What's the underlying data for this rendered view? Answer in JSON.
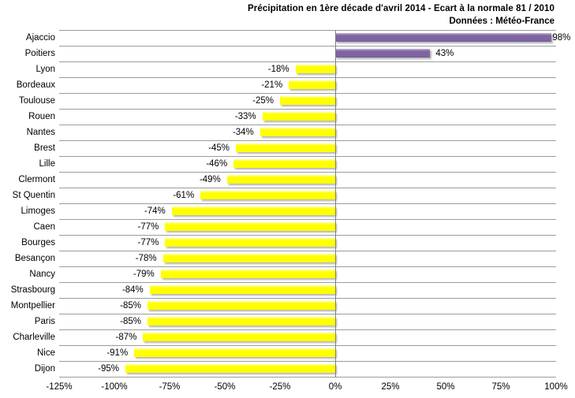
{
  "title": "Précipitation en 1ère décade  d'avril 2014 - Ecart à la normale 81 / 2010",
  "subtitle": "Données : Météo-France",
  "chart_data": {
    "type": "bar",
    "orientation": "horizontal",
    "title": "Précipitation en 1ère décade  d'avril 2014 - Ecart à la normale 81 / 2010",
    "subtitle": "Données : Météo-France",
    "categories": [
      "Ajaccio",
      "Poitiers",
      "Lyon",
      "Bordeaux",
      "Toulouse",
      "Rouen",
      "Nantes",
      "Brest",
      "Lille",
      "Clermont",
      "St Quentin",
      "Limoges",
      "Caen",
      "Bourges",
      "Besançon",
      "Nancy",
      "Strasbourg",
      "Montpellier",
      "Paris",
      "Charleville",
      "Nice",
      "Dijon"
    ],
    "values": [
      98,
      43,
      -18,
      -21,
      -25,
      -33,
      -34,
      -45,
      -46,
      -49,
      -61,
      -74,
      -77,
      -77,
      -78,
      -79,
      -84,
      -85,
      -85,
      -87,
      -91,
      -95
    ],
    "value_labels": [
      "98%",
      "43%",
      "-18%",
      "-21%",
      "-25%",
      "-33%",
      "-34%",
      "-45%",
      "-46%",
      "-49%",
      "-61%",
      "-74%",
      "-77%",
      "-77%",
      "-78%",
      "-79%",
      "-84%",
      "-85%",
      "-85%",
      "-87%",
      "-91%",
      "-95%"
    ],
    "xlim": [
      -125,
      100
    ],
    "x_tick_values": [
      -125,
      -100,
      -75,
      -50,
      -25,
      0,
      25,
      50,
      75,
      100
    ],
    "x_tick_labels": [
      "-125%",
      "-100%",
      "-75%",
      "-50%",
      "-25%",
      "0%",
      "25%",
      "50%",
      "75%",
      "100%"
    ],
    "positive_color": "#8064A2",
    "negative_color": "#FFFF00",
    "gridline_color": "#9C9C9C",
    "grid": "horizontal-between-categories",
    "legend": "none",
    "unit": "%"
  }
}
